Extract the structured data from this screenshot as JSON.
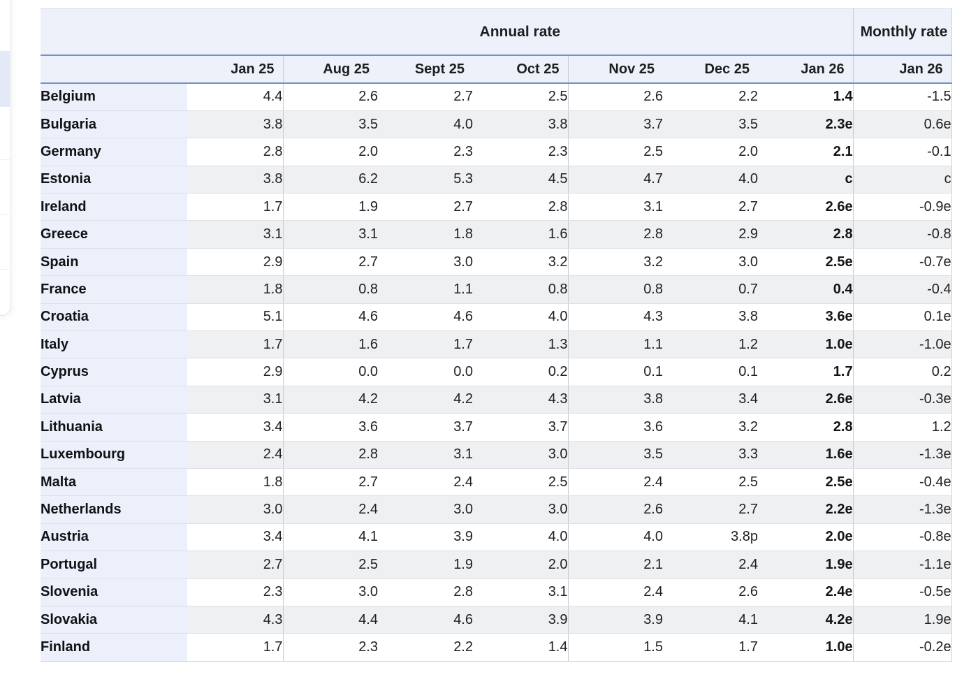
{
  "colors": {
    "page_background": "#ffffff",
    "header_background": "#edf1f9",
    "country_column_background": "#ecf0fa",
    "stripe_background": "#eff0f2",
    "blue_rule": "#7590cc",
    "group_separator": "#c4c9d2",
    "row_separator": "#dde0e6",
    "text": "#202124",
    "left_panel_highlight": "#e4e9f8"
  },
  "chart_data": {
    "type": "table",
    "column_groups": [
      {
        "label": "Annual rate",
        "columns": [
          "Jan 25",
          "Aug 25",
          "Sept 25",
          "Oct 25",
          "Nov 25",
          "Dec 25",
          "Jan 26"
        ]
      },
      {
        "label": "Monthly rate",
        "columns": [
          "Jan 26"
        ]
      }
    ],
    "rows": [
      {
        "country": "Belgium",
        "annual": [
          "4.4",
          "2.6",
          "2.7",
          "2.5",
          "2.6",
          "2.2",
          "1.4"
        ],
        "monthly": "-1.5"
      },
      {
        "country": "Bulgaria",
        "annual": [
          "3.8",
          "3.5",
          "4.0",
          "3.8",
          "3.7",
          "3.5",
          "2.3e"
        ],
        "monthly": "0.6e"
      },
      {
        "country": "Germany",
        "annual": [
          "2.8",
          "2.0",
          "2.3",
          "2.3",
          "2.5",
          "2.0",
          "2.1"
        ],
        "monthly": "-0.1"
      },
      {
        "country": "Estonia",
        "annual": [
          "3.8",
          "6.2",
          "5.3",
          "4.5",
          "4.7",
          "4.0",
          "c"
        ],
        "monthly": "c"
      },
      {
        "country": "Ireland",
        "annual": [
          "1.7",
          "1.9",
          "2.7",
          "2.8",
          "3.1",
          "2.7",
          "2.6e"
        ],
        "monthly": "-0.9e"
      },
      {
        "country": "Greece",
        "annual": [
          "3.1",
          "3.1",
          "1.8",
          "1.6",
          "2.8",
          "2.9",
          "2.8"
        ],
        "monthly": "-0.8"
      },
      {
        "country": "Spain",
        "annual": [
          "2.9",
          "2.7",
          "3.0",
          "3.2",
          "3.2",
          "3.0",
          "2.5e"
        ],
        "monthly": "-0.7e"
      },
      {
        "country": "France",
        "annual": [
          "1.8",
          "0.8",
          "1.1",
          "0.8",
          "0.8",
          "0.7",
          "0.4"
        ],
        "monthly": "-0.4"
      },
      {
        "country": "Croatia",
        "annual": [
          "5.1",
          "4.6",
          "4.6",
          "4.0",
          "4.3",
          "3.8",
          "3.6e"
        ],
        "monthly": "0.1e"
      },
      {
        "country": "Italy",
        "annual": [
          "1.7",
          "1.6",
          "1.7",
          "1.3",
          "1.1",
          "1.2",
          "1.0e"
        ],
        "monthly": "-1.0e"
      },
      {
        "country": "Cyprus",
        "annual": [
          "2.9",
          "0.0",
          "0.0",
          "0.2",
          "0.1",
          "0.1",
          "1.7"
        ],
        "monthly": "0.2"
      },
      {
        "country": "Latvia",
        "annual": [
          "3.1",
          "4.2",
          "4.2",
          "4.3",
          "3.8",
          "3.4",
          "2.6e"
        ],
        "monthly": "-0.3e"
      },
      {
        "country": "Lithuania",
        "annual": [
          "3.4",
          "3.6",
          "3.7",
          "3.7",
          "3.6",
          "3.2",
          "2.8"
        ],
        "monthly": "1.2"
      },
      {
        "country": "Luxembourg",
        "annual": [
          "2.4",
          "2.8",
          "3.1",
          "3.0",
          "3.5",
          "3.3",
          "1.6e"
        ],
        "monthly": "-1.3e"
      },
      {
        "country": "Malta",
        "annual": [
          "1.8",
          "2.7",
          "2.4",
          "2.5",
          "2.4",
          "2.5",
          "2.5e"
        ],
        "monthly": "-0.4e"
      },
      {
        "country": "Netherlands",
        "annual": [
          "3.0",
          "2.4",
          "3.0",
          "3.0",
          "2.6",
          "2.7",
          "2.2e"
        ],
        "monthly": "-1.3e"
      },
      {
        "country": "Austria",
        "annual": [
          "3.4",
          "4.1",
          "3.9",
          "4.0",
          "4.0",
          "3.8p",
          "2.0e"
        ],
        "monthly": "-0.8e"
      },
      {
        "country": "Portugal",
        "annual": [
          "2.7",
          "2.5",
          "1.9",
          "2.0",
          "2.1",
          "2.4",
          "1.9e"
        ],
        "monthly": "-1.1e"
      },
      {
        "country": "Slovenia",
        "annual": [
          "2.3",
          "3.0",
          "2.8",
          "3.1",
          "2.4",
          "2.6",
          "2.4e"
        ],
        "monthly": "-0.5e"
      },
      {
        "country": "Slovakia",
        "annual": [
          "4.3",
          "4.4",
          "4.6",
          "3.9",
          "3.9",
          "4.1",
          "4.2e"
        ],
        "monthly": "1.9e"
      },
      {
        "country": "Finland",
        "annual": [
          "1.7",
          "2.3",
          "2.2",
          "1.4",
          "1.5",
          "1.7",
          "1.0e"
        ],
        "monthly": "-0.2e"
      }
    ]
  }
}
